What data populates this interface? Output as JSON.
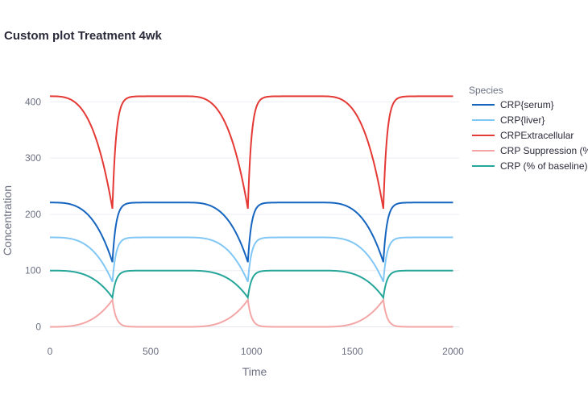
{
  "chart_data": {
    "type": "line",
    "title": "Custom plot Treatment 4wk",
    "xlabel": "Time",
    "ylabel": "Concentration",
    "xlim": [
      0,
      2030
    ],
    "ylim": [
      -38,
      445
    ],
    "xticks": [
      0,
      500,
      1000,
      1500,
      2000
    ],
    "yticks": [
      0,
      100,
      200,
      300,
      400
    ],
    "grid": true,
    "legend_title": "Species",
    "legend_position": "right",
    "dosing": {
      "period": 672,
      "first_dose": 0,
      "trough_time": 310
    },
    "series": [
      {
        "name": "CRP{serum}",
        "color": "#1565c0",
        "baseline": 221,
        "trough": 115,
        "shape": "drop",
        "values_sampled": [
          [
            0,
            221
          ],
          [
            150,
            200
          ],
          [
            250,
            170
          ],
          [
            310,
            117
          ],
          [
            400,
            212
          ],
          [
            672,
            221
          ],
          [
            900,
            195
          ],
          [
            982,
            115
          ],
          [
            1050,
            210
          ],
          [
            1344,
            221
          ],
          [
            1600,
            185
          ],
          [
            1654,
            115
          ],
          [
            1750,
            212
          ],
          [
            2000,
            221
          ]
        ]
      },
      {
        "name": "CRP{liver}",
        "color": "#81c7f5",
        "baseline": 159,
        "trough": 80,
        "shape": "drop",
        "values_sampled": [
          [
            0,
            159
          ],
          [
            150,
            145
          ],
          [
            250,
            120
          ],
          [
            310,
            82
          ],
          [
            400,
            152
          ],
          [
            672,
            159
          ],
          [
            900,
            140
          ],
          [
            982,
            80
          ],
          [
            1050,
            150
          ],
          [
            1344,
            159
          ],
          [
            1600,
            130
          ],
          [
            1654,
            80
          ],
          [
            1750,
            152
          ],
          [
            2000,
            159
          ]
        ]
      },
      {
        "name": "CRPExtracellular",
        "color": "#e53935",
        "baseline": 410,
        "trough": 210,
        "shape": "drop",
        "values_sampled": [
          [
            0,
            410
          ],
          [
            150,
            375
          ],
          [
            250,
            320
          ],
          [
            310,
            215
          ],
          [
            400,
            390
          ],
          [
            672,
            410
          ],
          [
            900,
            360
          ],
          [
            982,
            210
          ],
          [
            1050,
            385
          ],
          [
            1344,
            410
          ],
          [
            1600,
            340
          ],
          [
            1654,
            210
          ],
          [
            1750,
            390
          ],
          [
            2000,
            410
          ]
        ]
      },
      {
        "name": "CRP Suppression (%)",
        "color": "#f4a6a6",
        "baseline": 0,
        "trough": 48,
        "shape": "rise",
        "values_sampled": [
          [
            0,
            0
          ],
          [
            150,
            5
          ],
          [
            250,
            22
          ],
          [
            310,
            47
          ],
          [
            400,
            4
          ],
          [
            672,
            0
          ],
          [
            900,
            12
          ],
          [
            982,
            49
          ],
          [
            1050,
            5
          ],
          [
            1344,
            0
          ],
          [
            1600,
            18
          ],
          [
            1654,
            49
          ],
          [
            1750,
            4
          ],
          [
            2000,
            0
          ]
        ]
      },
      {
        "name": "CRP (% of baseline)",
        "color": "#26a69a",
        "baseline": 100,
        "trough": 52,
        "shape": "drop",
        "values_sampled": [
          [
            0,
            100
          ],
          [
            150,
            95
          ],
          [
            250,
            78
          ],
          [
            310,
            53
          ],
          [
            400,
            96
          ],
          [
            672,
            100
          ],
          [
            900,
            88
          ],
          [
            982,
            51
          ],
          [
            1050,
            95
          ],
          [
            1344,
            100
          ],
          [
            1600,
            82
          ],
          [
            1654,
            51
          ],
          [
            1750,
            96
          ],
          [
            2000,
            100
          ]
        ]
      }
    ]
  }
}
